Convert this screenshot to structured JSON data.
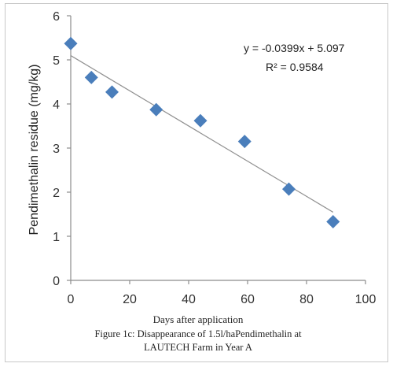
{
  "chart_data": {
    "type": "scatter",
    "xlabel": "Days after application",
    "ylabel": "Pendimethalin residue (mg/kg)",
    "xlim": [
      0,
      100
    ],
    "ylim": [
      0,
      6
    ],
    "xticks": [
      "0",
      "20",
      "40",
      "60",
      "80",
      "100"
    ],
    "yticks": [
      "0",
      "1",
      "2",
      "3",
      "4",
      "5",
      "6"
    ],
    "grid": false,
    "marker": "diamond",
    "marker_color": "#4a7ebb",
    "trendline_color": "#909090",
    "points": [
      {
        "x": 0,
        "y": 5.37
      },
      {
        "x": 7,
        "y": 4.6
      },
      {
        "x": 14,
        "y": 4.27
      },
      {
        "x": 29,
        "y": 3.87
      },
      {
        "x": 44,
        "y": 3.62
      },
      {
        "x": 59,
        "y": 3.15
      },
      {
        "x": 74,
        "y": 2.07
      },
      {
        "x": 89,
        "y": 1.33
      }
    ],
    "trendline": {
      "slope": -0.0399,
      "intercept": 5.097,
      "x_range": [
        0,
        89
      ]
    },
    "equation": "y = -0.0399x + 5.097",
    "r_squared": "R² = 0.9584",
    "caption_lines": [
      "Figure 1c: Disappearance of 1.5l/haPendimethalin at",
      "LAUTECH  Farm in Year A"
    ]
  }
}
